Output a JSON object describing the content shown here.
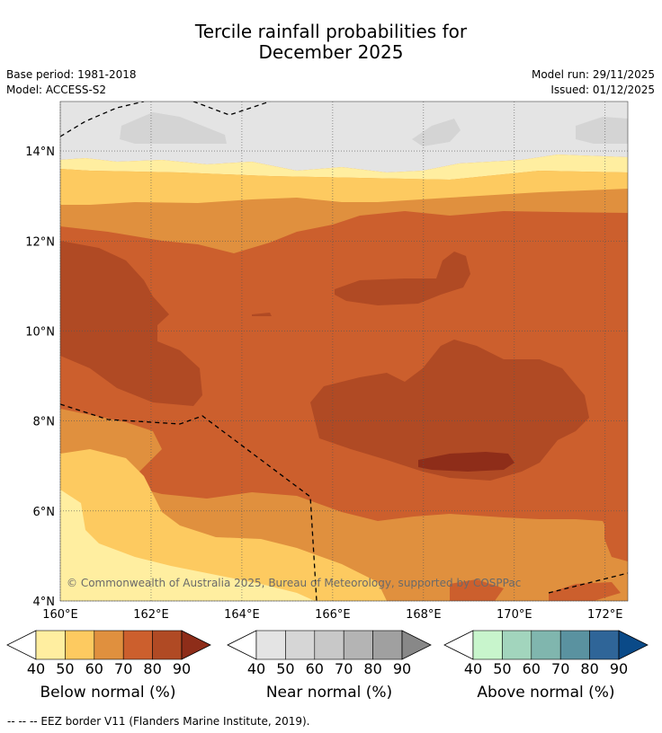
{
  "header": {
    "title_line1": "Tercile rainfall probabilities for",
    "title_line2": "December 2025",
    "base_period": "Base period: 1981-2018",
    "model": "Model: ACCESS-S2",
    "model_run": "Model run: 29/11/2025",
    "issued": "Issued: 01/12/2025"
  },
  "map": {
    "lat_labels": [
      "14°N",
      "12°N",
      "10°N",
      "8°N",
      "6°N",
      "4°N"
    ],
    "lat_values": [
      14,
      12,
      10,
      8,
      6,
      4
    ],
    "lon_labels": [
      "160°E",
      "162°E",
      "164°E",
      "166°E",
      "168°E",
      "170°E",
      "172°E"
    ],
    "lon_values": [
      160,
      162,
      164,
      166,
      168,
      170,
      172
    ],
    "extent": {
      "lon_min": 160,
      "lon_max": 172.5,
      "lat_min": 4,
      "lat_max": 15.1
    },
    "copyright": "© Commonwealth of Australia 2025, Bureau of Meteorology, supported by COSPPac"
  },
  "colorbars": [
    {
      "name": "below",
      "label": "Below normal (%)",
      "ticks": [
        "40",
        "50",
        "60",
        "70",
        "80",
        "90"
      ],
      "colors": [
        "#ffeea0",
        "#fdca60",
        "#e0903e",
        "#cc5f2d",
        "#b04a24",
        "#8e2d19"
      ]
    },
    {
      "name": "near",
      "label": "Near normal (%)",
      "ticks": [
        "40",
        "50",
        "60",
        "70",
        "80",
        "90"
      ],
      "colors": [
        "#e4e4e4",
        "#d6d6d6",
        "#c8c8c8",
        "#b4b4b4",
        "#a0a0a0",
        "#888888"
      ]
    },
    {
      "name": "above",
      "label": "Above normal (%)",
      "ticks": [
        "40",
        "50",
        "60",
        "70",
        "80",
        "90"
      ],
      "colors": [
        "#c8f5cc",
        "#a2d5bd",
        "#80b6ae",
        "#5a92a0",
        "#2f6598",
        "#0a4a88"
      ]
    }
  ],
  "footer": "--  --  -- EEZ border V11 (Flanders Marine Institute, 2019)."
}
